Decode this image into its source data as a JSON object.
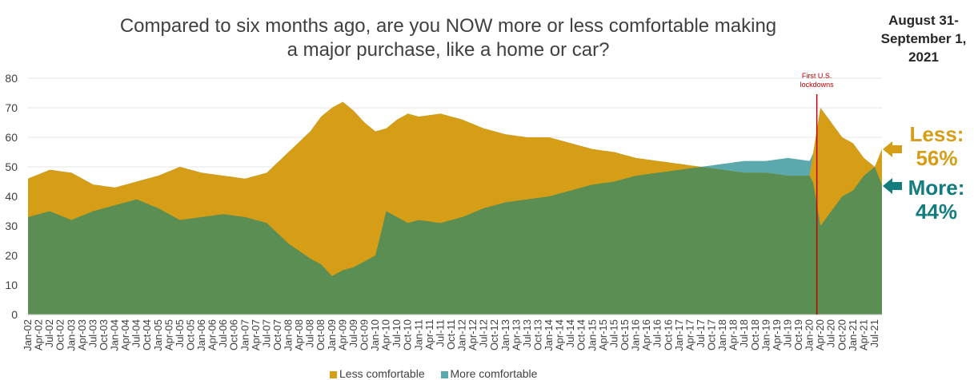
{
  "title": "Compared to six months ago, are you NOW more or less comfortable making a major purchase, like a home or car?",
  "title_line1": "Compared to six months ago, are you NOW more or less comfortable making",
  "title_line2": "a major purchase, like a home or car?",
  "date": {
    "line1": "August 31-",
    "line2": "September 1,",
    "line3": "2021"
  },
  "callouts": {
    "less_label": "Less:",
    "less_value": "56%",
    "more_label": "More:",
    "more_value": "44%"
  },
  "colors": {
    "less": "#d69e17",
    "more": "#5b8e53",
    "more_above": "#5ba9ad",
    "lockdown": "#c00000",
    "less_text": "#d69e17",
    "more_text": "#137c7d"
  },
  "icons": {
    "less_arrow": "left-arrow-icon",
    "more_arrow": "left-arrow-icon"
  },
  "chart_data": {
    "type": "area",
    "ylim": [
      0,
      80
    ],
    "yticks": [
      0,
      10,
      20,
      30,
      40,
      50,
      60,
      70,
      80
    ],
    "x_tick_labels": [
      "Jan-02",
      "Apr-02",
      "Jul-02",
      "Oct-02",
      "Jan-03",
      "Apr-03",
      "Jul-03",
      "Oct-03",
      "Jan-04",
      "Apr-04",
      "Jul-04",
      "Oct-04",
      "Jan-05",
      "Apr-05",
      "Jul-05",
      "Oct-05",
      "Jan-06",
      "Apr-06",
      "Jul-06",
      "Oct-06",
      "Jan-07",
      "Apr-07",
      "Jul-07",
      "Oct-07",
      "Jan-08",
      "Apr-08",
      "Jul-08",
      "Oct-08",
      "Jan-09",
      "Apr-09",
      "Jul-09",
      "Oct-09",
      "Jan-10",
      "Apr-10",
      "Jul-10",
      "Oct-10",
      "Jan-11",
      "Apr-11",
      "Jul-11",
      "Oct-11",
      "Jan-12",
      "Apr-12",
      "Jul-12",
      "Oct-12",
      "Jan-13",
      "Apr-13",
      "Jul-13",
      "Oct-13",
      "Jan-14",
      "Apr-14",
      "Jul-14",
      "Oct-14",
      "Jan-15",
      "Apr-15",
      "Jul-15",
      "Oct-15",
      "Jan-16",
      "Apr-16",
      "Jul-16",
      "Oct-16",
      "Jan-17",
      "Apr-17",
      "Jul-17",
      "Oct-17",
      "Jan-18",
      "Apr-18",
      "Jul-18",
      "Oct-18",
      "Jan-19",
      "Apr-19",
      "Jul-19",
      "Oct-19",
      "Jan-20",
      "Apr-20",
      "Jul-20",
      "Oct-20",
      "Jan-21",
      "Apr-21",
      "Jul-21"
    ],
    "x_range": [
      "2002-01",
      "2021-09"
    ],
    "series": [
      {
        "name": "Less comfortable",
        "points": [
          [
            "2002-01",
            46
          ],
          [
            "2002-07",
            49
          ],
          [
            "2003-01",
            48
          ],
          [
            "2003-07",
            44
          ],
          [
            "2004-01",
            43
          ],
          [
            "2004-07",
            45
          ],
          [
            "2005-01",
            47
          ],
          [
            "2005-07",
            50
          ],
          [
            "2006-01",
            48
          ],
          [
            "2006-07",
            47
          ],
          [
            "2007-01",
            46
          ],
          [
            "2007-07",
            48
          ],
          [
            "2008-01",
            55
          ],
          [
            "2008-07",
            62
          ],
          [
            "2008-10",
            67
          ],
          [
            "2009-01",
            70
          ],
          [
            "2009-04",
            72
          ],
          [
            "2009-07",
            69
          ],
          [
            "2009-10",
            65
          ],
          [
            "2010-01",
            62
          ],
          [
            "2010-04",
            63
          ],
          [
            "2010-07",
            66
          ],
          [
            "2010-10",
            68
          ],
          [
            "2011-01",
            67
          ],
          [
            "2011-07",
            68
          ],
          [
            "2012-01",
            66
          ],
          [
            "2012-07",
            63
          ],
          [
            "2013-01",
            61
          ],
          [
            "2013-07",
            60
          ],
          [
            "2014-01",
            60
          ],
          [
            "2014-07",
            58
          ],
          [
            "2015-01",
            56
          ],
          [
            "2015-07",
            55
          ],
          [
            "2016-01",
            53
          ],
          [
            "2016-07",
            52
          ],
          [
            "2017-01",
            51
          ],
          [
            "2017-07",
            50
          ],
          [
            "2018-01",
            49
          ],
          [
            "2018-07",
            48
          ],
          [
            "2019-01",
            48
          ],
          [
            "2019-07",
            47
          ],
          [
            "2020-01",
            47
          ],
          [
            "2020-04",
            70
          ],
          [
            "2020-07",
            65
          ],
          [
            "2020-10",
            60
          ],
          [
            "2021-01",
            58
          ],
          [
            "2021-04",
            53
          ],
          [
            "2021-07",
            50
          ],
          [
            "2021-09",
            56
          ]
        ]
      },
      {
        "name": "More comfortable",
        "points": [
          [
            "2002-01",
            33
          ],
          [
            "2002-07",
            35
          ],
          [
            "2003-01",
            32
          ],
          [
            "2003-07",
            35
          ],
          [
            "2004-01",
            37
          ],
          [
            "2004-07",
            39
          ],
          [
            "2005-01",
            36
          ],
          [
            "2005-07",
            32
          ],
          [
            "2006-01",
            33
          ],
          [
            "2006-07",
            34
          ],
          [
            "2007-01",
            33
          ],
          [
            "2007-07",
            31
          ],
          [
            "2008-01",
            24
          ],
          [
            "2008-07",
            19
          ],
          [
            "2008-10",
            17
          ],
          [
            "2009-01",
            13
          ],
          [
            "2009-04",
            15
          ],
          [
            "2009-07",
            16
          ],
          [
            "2009-10",
            18
          ],
          [
            "2010-01",
            20
          ],
          [
            "2010-04",
            35
          ],
          [
            "2010-07",
            33
          ],
          [
            "2010-10",
            31
          ],
          [
            "2011-01",
            32
          ],
          [
            "2011-07",
            31
          ],
          [
            "2012-01",
            33
          ],
          [
            "2012-07",
            36
          ],
          [
            "2013-01",
            38
          ],
          [
            "2013-07",
            39
          ],
          [
            "2014-01",
            40
          ],
          [
            "2014-07",
            42
          ],
          [
            "2015-01",
            44
          ],
          [
            "2015-07",
            45
          ],
          [
            "2016-01",
            47
          ],
          [
            "2016-07",
            48
          ],
          [
            "2017-01",
            49
          ],
          [
            "2017-07",
            50
          ],
          [
            "2018-01",
            51
          ],
          [
            "2018-07",
            52
          ],
          [
            "2019-01",
            52
          ],
          [
            "2019-07",
            53
          ],
          [
            "2020-01",
            52
          ],
          [
            "2020-04",
            30
          ],
          [
            "2020-07",
            35
          ],
          [
            "2020-10",
            40
          ],
          [
            "2021-01",
            42
          ],
          [
            "2021-04",
            47
          ],
          [
            "2021-07",
            50
          ],
          [
            "2021-09",
            44
          ]
        ]
      }
    ],
    "annotation": {
      "date": "2020-03",
      "label_line1": "First U.S.",
      "label_line2": "lockdowns"
    },
    "legend": {
      "position": "bottom",
      "entries": [
        "Less comfortable",
        "More comfortable"
      ]
    }
  }
}
